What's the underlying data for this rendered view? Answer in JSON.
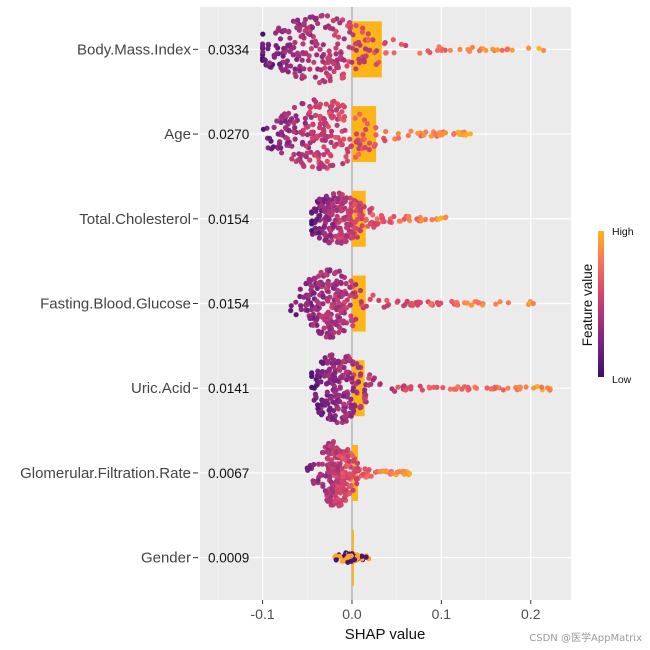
{
  "chart_data": {
    "type": "scatter",
    "subtype": "shap-summary-beeswarm",
    "xlabel": "SHAP value",
    "xlim": [
      -0.17,
      0.245
    ],
    "xticks": [
      -0.1,
      0.0,
      0.1,
      0.2
    ],
    "xtick_labels": [
      "-0.1",
      "0.0",
      "0.1",
      "0.2"
    ],
    "grid": true,
    "features": [
      {
        "name": "Body.Mass.Index",
        "importance_label": "0.0334",
        "mean_abs_shap": 0.0334,
        "min": -0.1,
        "max": 0.215
      },
      {
        "name": "Age",
        "importance_label": "0.0270",
        "mean_abs_shap": 0.027,
        "min": -0.1,
        "max": 0.135
      },
      {
        "name": "Total.Cholesterol",
        "importance_label": "0.0154",
        "mean_abs_shap": 0.0154,
        "min": -0.045,
        "max": 0.105
      },
      {
        "name": "Fasting.Blood.Glucose",
        "importance_label": "0.0154",
        "mean_abs_shap": 0.0154,
        "min": -0.07,
        "max": 0.21
      },
      {
        "name": "Uric.Acid",
        "importance_label": "0.0141",
        "mean_abs_shap": 0.0141,
        "min": -0.045,
        "max": 0.23
      },
      {
        "name": "Glomerular.Filtration.Rate",
        "importance_label": "0.0067",
        "mean_abs_shap": 0.0067,
        "min": -0.05,
        "max": 0.065
      },
      {
        "name": "Gender",
        "importance_label": "0.0009",
        "mean_abs_shap": 0.0009,
        "min": -0.02,
        "max": 0.02
      }
    ],
    "legend": {
      "title": "Feature value",
      "high_label": "High",
      "low_label": "Low",
      "placement": "right",
      "low_color": "#3b0f70",
      "high_color": "#fcb519"
    },
    "colors": {
      "panel_background": "#ebebeb",
      "grid": "#ffffff",
      "zero_line": "#b3b3b3",
      "importance_bar": "#fcb519"
    }
  },
  "watermark": "CSDN @医学AppMatrix"
}
